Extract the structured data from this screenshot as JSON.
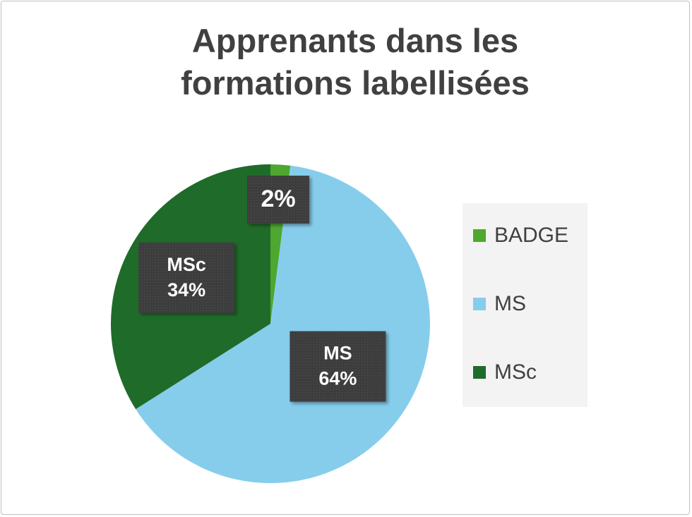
{
  "chart_data": {
    "type": "pie",
    "title": "Apprenants dans les formations labellisées",
    "categories": [
      "BADGE",
      "MS",
      "MSc"
    ],
    "values": [
      2,
      64,
      34
    ],
    "value_labels": [
      "2%",
      "64%",
      "34%"
    ],
    "label_shows_category": [
      false,
      true,
      true
    ],
    "colors": [
      "#4ea72e",
      "#86cdec",
      "#1f6b2a"
    ],
    "legend": "right"
  }
}
